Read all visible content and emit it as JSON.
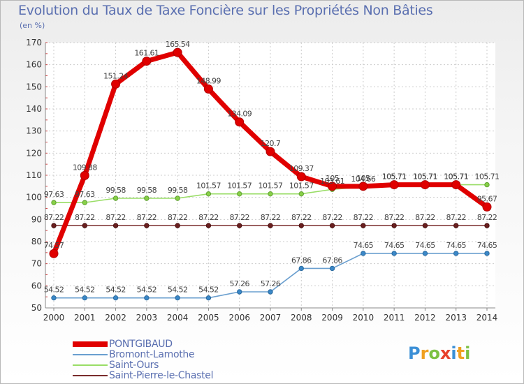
{
  "header": {
    "title": "Evolution du Taux de Taxe Foncière sur les Propriétés Non Bâties",
    "subtitle": "(en %)"
  },
  "logo": {
    "letters": [
      "P",
      "r",
      "o",
      "x",
      "i",
      "t",
      "i"
    ],
    "colors": [
      "#3b8fd6",
      "#f0a020",
      "#7cc142",
      "#e8402a",
      "#3b8fd6",
      "#f0a020",
      "#7cc142"
    ]
  },
  "chart_data": {
    "type": "line",
    "title": "Evolution du Taux de Taxe Foncière sur les Propriétés Non Bâties",
    "ylabel": "(en %)",
    "xlabel": "",
    "x": [
      "2000",
      "2001",
      "2002",
      "2003",
      "2004",
      "2005",
      "2006",
      "2007",
      "2008",
      "2009",
      "2010",
      "2011",
      "2012",
      "2013",
      "2014"
    ],
    "ylim": [
      50,
      170
    ],
    "yticks": [
      50,
      60,
      70,
      80,
      90,
      100,
      110,
      120,
      130,
      140,
      150,
      160,
      170
    ],
    "grid": true,
    "legend": "bottom-left",
    "series": [
      {
        "name": "PONTGIBAUD",
        "color": "#e00000",
        "values": [
          74.57,
          109.88,
          151.24,
          161.61,
          165.54,
          148.99,
          134.09,
          120.7,
          109.37,
          105,
          105,
          105.71,
          105.71,
          105.71,
          95.67
        ],
        "labels": [
          "74.57",
          "109.88",
          "151.24",
          "161.61",
          "165.54",
          "148.99",
          "134.09",
          "120.7",
          "109.37",
          "105",
          "105",
          "105.71",
          "105.71",
          "105.71",
          "95.67"
        ]
      },
      {
        "name": "Bromont-Lamothe",
        "color": "#6a9fcf",
        "values": [
          54.52,
          54.52,
          54.52,
          54.52,
          54.52,
          54.52,
          57.26,
          57.26,
          67.86,
          67.86,
          74.65,
          74.65,
          74.65,
          74.65,
          74.65
        ],
        "labels": [
          "54.52",
          "54.52",
          "54.52",
          "54.52",
          "54.52",
          "54.52",
          "57.26",
          "57.26",
          "67.86",
          "67.86",
          "74.65",
          "74.65",
          "74.65",
          "74.65",
          "74.65"
        ]
      },
      {
        "name": "Saint-Ours",
        "color": "#99dd66",
        "values": [
          97.63,
          97.63,
          99.58,
          99.58,
          99.58,
          101.57,
          101.57,
          101.57,
          101.57,
          103.61,
          104.66,
          105.71,
          105.71,
          105.71,
          105.71
        ],
        "labels": [
          "97.63",
          "97.63",
          "99.58",
          "99.58",
          "99.58",
          "101.57",
          "101.57",
          "101.57",
          "101.57",
          "103.61",
          "104.66",
          "105.71",
          "105.71",
          "105.71",
          "105.71"
        ]
      },
      {
        "name": "Saint-Pierre-le-Chastel",
        "color": "#7a2c2c",
        "values": [
          87.22,
          87.22,
          87.22,
          87.22,
          87.22,
          87.22,
          87.22,
          87.22,
          87.22,
          87.22,
          87.22,
          87.22,
          87.22,
          87.22,
          87.22
        ],
        "labels": [
          "87.22",
          "87.22",
          "87.22",
          "87.22",
          "87.22",
          "87.22",
          "87.22",
          "87.22",
          "87.22",
          "87.22",
          "87.22",
          "87.22",
          "87.22",
          "87.22",
          "87.22"
        ]
      }
    ]
  }
}
